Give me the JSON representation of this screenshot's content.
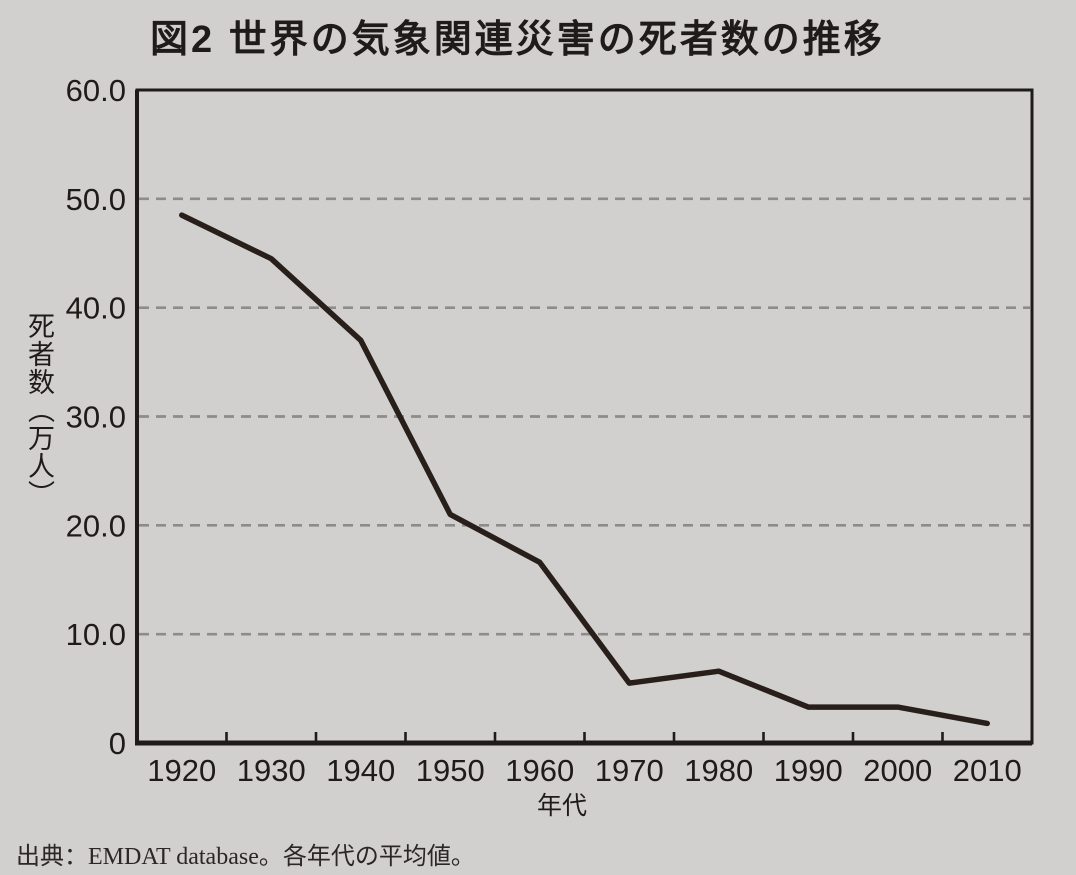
{
  "title": "図2 世界の気象関連災害の死者数の推移",
  "source_note": "出典：EMDAT database。各年代の平均値。",
  "chart_data": {
    "type": "line",
    "title": "図2 世界の気象関連災害の死者数の推移",
    "categories": [
      "1920",
      "1930",
      "1940",
      "1950",
      "1960",
      "1970",
      "1980",
      "1990",
      "2000",
      "2010"
    ],
    "series": [
      {
        "name": "死者数",
        "values": [
          48.5,
          44.5,
          37.0,
          21.0,
          16.6,
          5.5,
          6.6,
          3.3,
          3.3,
          1.8
        ]
      }
    ],
    "xlabel": "年代",
    "ylabel": "死者数（万人）",
    "ylim": [
      0,
      60
    ],
    "yticks": [
      {
        "value": 60,
        "label": "60.0"
      },
      {
        "value": 50,
        "label": "50.0"
      },
      {
        "value": 40,
        "label": "40.0"
      },
      {
        "value": 30,
        "label": "30.0"
      },
      {
        "value": 20,
        "label": "20.0"
      },
      {
        "value": 10,
        "label": "10.0"
      },
      {
        "value": 0,
        "label": "0"
      }
    ],
    "grid": "horizontal dashed lines at 10.0–50.0",
    "legend": "none",
    "colors": {
      "background": "#d2d0ce",
      "line": "#281f1b",
      "grid": "#8e8c8a",
      "axis": "#1f1b18",
      "text": "#1f1b18"
    },
    "source": "出典：EMDAT database。各年代の平均値。"
  }
}
